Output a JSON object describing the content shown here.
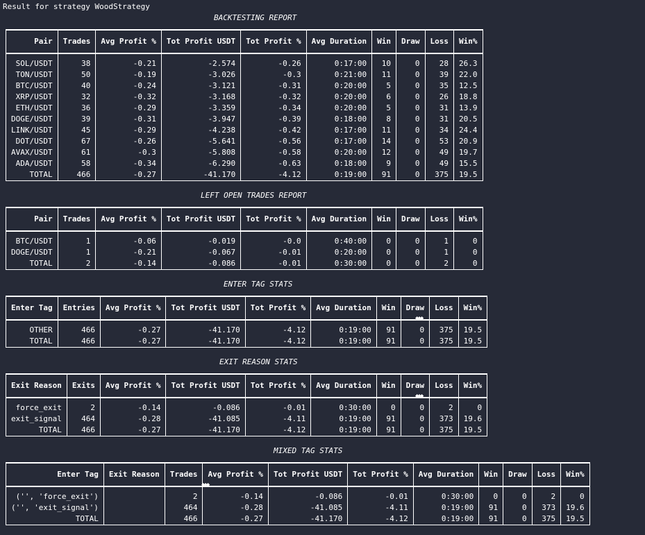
{
  "header": {
    "text": "Result for strategy WoodStrategy"
  },
  "backtesting": {
    "title": "BACKTESTING REPORT",
    "columns": [
      "Pair",
      "Trades",
      "Avg Profit %",
      "Tot Profit USDT",
      "Tot Profit %",
      "Avg Duration",
      "Win",
      "Draw",
      "Loss",
      "Win%"
    ],
    "rows": [
      [
        "SOL/USDT",
        "38",
        "-0.21",
        "-2.574",
        "-0.26",
        "0:17:00",
        "10",
        "0",
        "28",
        "26.3"
      ],
      [
        "TON/USDT",
        "50",
        "-0.19",
        "-3.026",
        "-0.3",
        "0:21:00",
        "11",
        "0",
        "39",
        "22.0"
      ],
      [
        "BTC/USDT",
        "40",
        "-0.24",
        "-3.121",
        "-0.31",
        "0:20:00",
        "5",
        "0",
        "35",
        "12.5"
      ],
      [
        "XRP/USDT",
        "32",
        "-0.32",
        "-3.168",
        "-0.32",
        "0:20:00",
        "6",
        "0",
        "26",
        "18.8"
      ],
      [
        "ETH/USDT",
        "36",
        "-0.29",
        "-3.359",
        "-0.34",
        "0:20:00",
        "5",
        "0",
        "31",
        "13.9"
      ],
      [
        "DOGE/USDT",
        "39",
        "-0.31",
        "-3.947",
        "-0.39",
        "0:18:00",
        "8",
        "0",
        "31",
        "20.5"
      ],
      [
        "LINK/USDT",
        "45",
        "-0.29",
        "-4.238",
        "-0.42",
        "0:17:00",
        "11",
        "0",
        "34",
        "24.4"
      ],
      [
        "DOT/USDT",
        "67",
        "-0.26",
        "-5.641",
        "-0.56",
        "0:17:00",
        "14",
        "0",
        "53",
        "20.9"
      ],
      [
        "AVAX/USDT",
        "61",
        "-0.3",
        "-5.808",
        "-0.58",
        "0:20:00",
        "12",
        "0",
        "49",
        "19.7"
      ],
      [
        "ADA/USDT",
        "58",
        "-0.34",
        "-6.290",
        "-0.63",
        "0:18:00",
        "9",
        "0",
        "49",
        "15.5"
      ],
      [
        "TOTAL",
        "466",
        "-0.27",
        "-41.170",
        "-4.12",
        "0:19:00",
        "91",
        "0",
        "375",
        "19.5"
      ]
    ]
  },
  "left_open": {
    "title": "LEFT OPEN TRADES REPORT",
    "columns": [
      "Pair",
      "Trades",
      "Avg Profit %",
      "Tot Profit USDT",
      "Tot Profit %",
      "Avg Duration",
      "Win",
      "Draw",
      "Loss",
      "Win%"
    ],
    "rows": [
      [
        "BTC/USDT",
        "1",
        "-0.06",
        "-0.019",
        "-0.0",
        "0:40:00",
        "0",
        "0",
        "1",
        "0"
      ],
      [
        "DOGE/USDT",
        "1",
        "-0.21",
        "-0.067",
        "-0.01",
        "0:20:00",
        "0",
        "0",
        "1",
        "0"
      ],
      [
        "TOTAL",
        "2",
        "-0.14",
        "-0.086",
        "-0.01",
        "0:30:00",
        "0",
        "0",
        "2",
        "0"
      ]
    ]
  },
  "enter_tag": {
    "title": "ENTER TAG STATS",
    "columns": [
      "Enter Tag",
      "Entries",
      "Avg Profit %",
      "Tot Profit USDT",
      "Tot Profit %",
      "Avg Duration",
      "Win",
      "Draw",
      "Loss",
      "Win%"
    ],
    "rows": [
      [
        "OTHER",
        "466",
        "-0.27",
        "-41.170",
        "-4.12",
        "0:19:00",
        "91",
        "0",
        "375",
        "19.5"
      ],
      [
        "TOTAL",
        "466",
        "-0.27",
        "-41.170",
        "-4.12",
        "0:19:00",
        "91",
        "0",
        "375",
        "19.5"
      ]
    ]
  },
  "exit_reason": {
    "title": "EXIT REASON STATS",
    "columns": [
      "Exit Reason",
      "Exits",
      "Avg Profit %",
      "Tot Profit USDT",
      "Tot Profit %",
      "Avg Duration",
      "Win",
      "Draw",
      "Loss",
      "Win%"
    ],
    "rows": [
      [
        "force_exit",
        "2",
        "-0.14",
        "-0.086",
        "-0.01",
        "0:30:00",
        "0",
        "0",
        "2",
        "0"
      ],
      [
        "exit_signal",
        "464",
        "-0.28",
        "-41.085",
        "-4.11",
        "0:19:00",
        "91",
        "0",
        "373",
        "19.6"
      ],
      [
        "TOTAL",
        "466",
        "-0.27",
        "-41.170",
        "-4.12",
        "0:19:00",
        "91",
        "0",
        "375",
        "19.5"
      ]
    ]
  },
  "mixed_tag": {
    "title": "MIXED TAG STATS",
    "columns": [
      "Enter Tag",
      "Exit Reason",
      "Trades",
      "Avg Profit %",
      "Tot Profit USDT",
      "Tot Profit %",
      "Avg Duration",
      "Win",
      "Draw",
      "Loss",
      "Win%"
    ],
    "rows": [
      [
        "('', 'force_exit')",
        "",
        "2",
        "-0.14",
        "-0.086",
        "-0.01",
        "0:30:00",
        "0",
        "0",
        "2",
        "0"
      ],
      [
        "('', 'exit_signal')",
        "",
        "464",
        "-0.28",
        "-41.085",
        "-4.11",
        "0:19:00",
        "91",
        "0",
        "373",
        "19.6"
      ],
      [
        "TOTAL",
        "",
        "466",
        "-0.27",
        "-41.170",
        "-4.12",
        "0:19:00",
        "91",
        "0",
        "375",
        "19.5"
      ]
    ]
  }
}
